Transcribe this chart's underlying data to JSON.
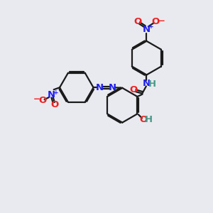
{
  "bg_color": "#e8eaf0",
  "bond_color": "#1a1a1a",
  "N_color": "#2020ee",
  "O_color": "#ee2020",
  "H_color": "#4a9a8a",
  "lw": 1.6,
  "dbo": 0.055,
  "fs": 9.5,
  "xlim": [
    0,
    10
  ],
  "ylim": [
    0,
    10
  ]
}
